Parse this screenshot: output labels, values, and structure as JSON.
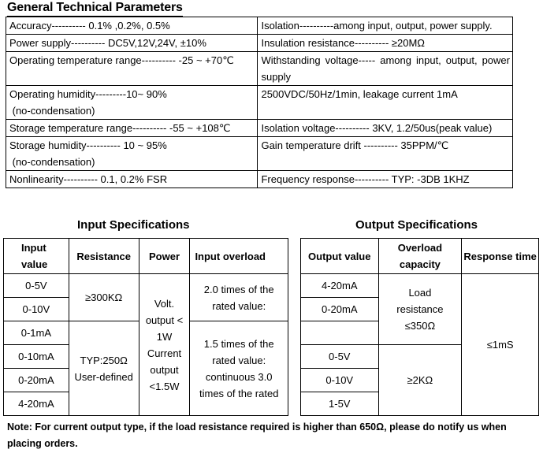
{
  "title": "General Technical Parameters",
  "general": [
    {
      "left": [
        "Accuracy---------- 0.1% ,0.2%, 0.5%"
      ],
      "right": [
        "Isolation----------among input, output, power supply."
      ]
    },
    {
      "left": [
        "Power supply---------- DC5V,12V,24V, ±10%"
      ],
      "right": [
        "Insulation resistance---------- ≥20MΩ"
      ]
    },
    {
      "left": [
        "Operating temperature range---------- -25 ~ +70℃"
      ],
      "right": [
        "Withstanding voltage----- among input, output, power supply"
      ]
    },
    {
      "left": [
        "Operating humidity---------10~ 90%",
        " (no-condensation)"
      ],
      "right": [
        "2500VDC/50Hz/1min, leakage current 1mA"
      ]
    },
    {
      "left": [
        "Storage temperature range---------- -55 ~ +108℃"
      ],
      "right": [
        "Isolation voltage---------- 3KV, 1.2/50us(peak value)"
      ]
    },
    {
      "left": [
        "Storage humidity---------- 10 ~ 95%",
        " (no-condensation)"
      ],
      "right": [
        "Gain temperature drift ---------- 35PPM/℃"
      ]
    },
    {
      "left": [
        "Nonlinearity---------- 0.1, 0.2% FSR"
      ],
      "right": [
        "Frequency response---------- TYP: -3DB   1KHZ"
      ]
    }
  ],
  "input": {
    "title": "Input Specifications",
    "headers": {
      "value": "Input value",
      "resistance": "Resistance",
      "power": "Power",
      "overload": "Input overload"
    },
    "values": [
      "0-5V",
      "0-10V",
      "0-1mA",
      "0-10mA",
      "0-20mA",
      "4-20mA"
    ],
    "resistance_voltage": "≥300KΩ",
    "resistance_current": "TYP:250Ω User-defined",
    "power": "Volt. output < 1W Current output <1.5W",
    "overload_a": "2.0 times of the rated value:",
    "overload_b": "1.5 times of the rated value: continuous 3.0 times of the rated"
  },
  "output": {
    "title": "Output Specifications",
    "headers": {
      "value": "Output value",
      "capacity": "Overload capacity",
      "response": "Response time"
    },
    "values": [
      "4-20mA",
      "0-20mA",
      "",
      "0-5V",
      "0-10V",
      "1-5V"
    ],
    "capacity_current": "Load resistance ≤350Ω",
    "capacity_voltage": "≥2KΩ",
    "response": "≤1mS"
  },
  "note": "Note: For current output type, if the load resistance required is higher than 650Ω, please do notify us when placing orders."
}
